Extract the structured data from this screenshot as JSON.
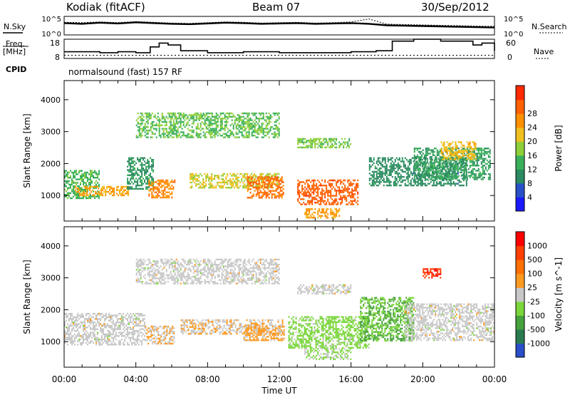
{
  "header": {
    "station": "Kodiak (fitACF)",
    "beam": "Beam 07",
    "date": "30/Sep/2012"
  },
  "left_labels": {
    "nsky": "N.Sky",
    "freq_line1": "Freq.",
    "freq_line2": "[MHz]",
    "cpid": "CPID"
  },
  "right_labels": {
    "nsearch": "N.Search",
    "nave": "Nave"
  },
  "cpid_text": "normalsound (fast) 157 RF",
  "chart_data": [
    {
      "type": "line",
      "name": "noise-panel",
      "series": [
        {
          "name": "N.Sky",
          "values": [
            3.2,
            3.0,
            3.3,
            3.1,
            3.4,
            3.2,
            3.0,
            2.9,
            3.1,
            3.3,
            3.2,
            3.0,
            3.1,
            3.2,
            3.0,
            3.1,
            3.2,
            3.0,
            2.6,
            2.5,
            2.4,
            2.3,
            2.2,
            2.1,
            2.0
          ]
        },
        {
          "name": "N.Search",
          "values": [
            3.4,
            3.3,
            3.5,
            3.3,
            3.6,
            3.4,
            3.2,
            3.1,
            3.3,
            3.5,
            3.4,
            3.2,
            3.3,
            3.4,
            3.2,
            3.3,
            3.5,
            4.3,
            2.9,
            2.8,
            2.7,
            2.6,
            2.5,
            2.4,
            2.3
          ]
        }
      ],
      "x": [
        0,
        1,
        2,
        3,
        4,
        5,
        6,
        7,
        8,
        9,
        10,
        11,
        12,
        13,
        14,
        15,
        16,
        17,
        18,
        19,
        20,
        21,
        22,
        23,
        24
      ],
      "ylim": [
        0,
        5
      ],
      "left_tick_labels": [
        "10^5",
        "10^0"
      ],
      "right_tick_labels": [
        "10^5",
        "10^0"
      ]
    },
    {
      "type": "line",
      "name": "frequency-panel",
      "series": [
        {
          "name": "Freq",
          "x": [
            0,
            2,
            3,
            4,
            4.8,
            5.3,
            5.8,
            6.5,
            8,
            10,
            12,
            14,
            16,
            17.4,
            18.3,
            19.5,
            21,
            22.8,
            23.3,
            24
          ],
          "values": [
            11.5,
            11,
            11.5,
            11,
            14,
            16,
            15,
            12,
            11,
            11.5,
            11,
            11,
            11.5,
            12,
            17,
            18,
            17,
            15,
            16,
            12
          ]
        },
        {
          "name": "Nave",
          "x": [
            0,
            24
          ],
          "values": [
            10,
            10
          ]
        }
      ],
      "ylim_left": [
        8,
        18
      ],
      "ylim_right": [
        0,
        60
      ],
      "left_tick_labels": [
        "18",
        "8"
      ],
      "right_tick_labels": [
        "60",
        "0"
      ]
    },
    {
      "type": "heatmap",
      "name": "power-panel",
      "x_range": [
        0,
        24
      ],
      "y_range": [
        200,
        4600
      ],
      "ylabel": "Slant Range [km]",
      "y_ticks": [
        1000,
        2000,
        3000,
        4000
      ],
      "colorbar": {
        "label": "Power [dB]",
        "min": 0,
        "max": 32,
        "ticks": [
          "4",
          "8",
          "12",
          "16",
          "20",
          "24",
          "28"
        ],
        "colors": [
          "#1a1aff",
          "#2850c8",
          "#2a8a60",
          "#3ab05a",
          "#8ecf3a",
          "#f0c020",
          "#ff9000",
          "#ff6000",
          "#ff2a00"
        ]
      },
      "features": [
        {
          "t": [
            0.0,
            2.0
          ],
          "r": [
            900,
            1800
          ],
          "v": 13
        },
        {
          "t": [
            0.6,
            3.6
          ],
          "r": [
            1000,
            1300
          ],
          "v": 22
        },
        {
          "t": [
            3.5,
            5.0
          ],
          "r": [
            1200,
            2200
          ],
          "v": 10
        },
        {
          "t": [
            4.7,
            6.2
          ],
          "r": [
            900,
            1500
          ],
          "v": 24
        },
        {
          "t": [
            7.0,
            12.0
          ],
          "r": [
            1200,
            1700
          ],
          "v": 18
        },
        {
          "t": [
            10.2,
            12.3
          ],
          "r": [
            900,
            1600
          ],
          "v": 26
        },
        {
          "t": [
            13.0,
            16.4
          ],
          "r": [
            700,
            1500
          ],
          "v": 27
        },
        {
          "t": [
            13.4,
            15.4
          ],
          "r": [
            300,
            600
          ],
          "v": 22
        },
        {
          "t": [
            17.0,
            22.5
          ],
          "r": [
            1300,
            2200
          ],
          "v": 9
        },
        {
          "t": [
            19.5,
            23.8
          ],
          "r": [
            1500,
            2500
          ],
          "v": 11
        },
        {
          "t": [
            4.0,
            12.0
          ],
          "r": [
            2800,
            3600
          ],
          "v": 14
        },
        {
          "t": [
            13.0,
            16.0
          ],
          "r": [
            2500,
            2800
          ],
          "v": 15
        },
        {
          "t": [
            21.0,
            23.0
          ],
          "r": [
            2100,
            2700
          ],
          "v": 20
        }
      ]
    },
    {
      "type": "heatmap",
      "name": "velocity-panel",
      "x_range": [
        0,
        24
      ],
      "y_range": [
        200,
        4600
      ],
      "xlabel": "Time UT",
      "ylabel": "Slant Range [km]",
      "y_ticks": [
        1000,
        2000,
        3000,
        4000
      ],
      "x_tick_labels": [
        "00:00",
        "04:00",
        "08:00",
        "12:00",
        "16:00",
        "20:00",
        "00:00"
      ],
      "colorbar": {
        "label": "Velocity [m s^-1]",
        "min": -1500,
        "max": 1500,
        "ticks": [
          "1000",
          "500",
          "100",
          "25",
          "-25",
          "-100",
          "-500",
          "-1000"
        ],
        "colors": [
          "#2a4ec8",
          "#2a7a50",
          "#46a03c",
          "#7ad63a",
          "#c8c8c8",
          "#ff9a20",
          "#ff7000",
          "#ff4000",
          "#ff0000"
        ]
      },
      "features": [
        {
          "t": [
            0.0,
            4.5
          ],
          "r": [
            900,
            1900
          ],
          "v": 0
        },
        {
          "t": [
            4.5,
            6.2
          ],
          "r": [
            900,
            1500
          ],
          "v": 150
        },
        {
          "t": [
            6.5,
            12.2
          ],
          "r": [
            1200,
            1700
          ],
          "v": 120
        },
        {
          "t": [
            10.0,
            12.3
          ],
          "r": [
            1000,
            1500
          ],
          "v": 300
        },
        {
          "t": [
            12.5,
            17.0
          ],
          "r": [
            800,
            1800
          ],
          "v": -300
        },
        {
          "t": [
            13.4,
            16.0
          ],
          "r": [
            400,
            800
          ],
          "v": -220
        },
        {
          "t": [
            16.5,
            19.5
          ],
          "r": [
            1000,
            2400
          ],
          "v": -500
        },
        {
          "t": [
            19.0,
            24.0
          ],
          "r": [
            1000,
            2200
          ],
          "v": 0
        },
        {
          "t": [
            4.0,
            12.0
          ],
          "r": [
            2800,
            3600
          ],
          "v": 0
        },
        {
          "t": [
            13.0,
            16.0
          ],
          "r": [
            2500,
            2800
          ],
          "v": 0
        },
        {
          "t": [
            20.0,
            21.0
          ],
          "r": [
            3000,
            3300
          ],
          "v": 1100
        }
      ]
    }
  ]
}
